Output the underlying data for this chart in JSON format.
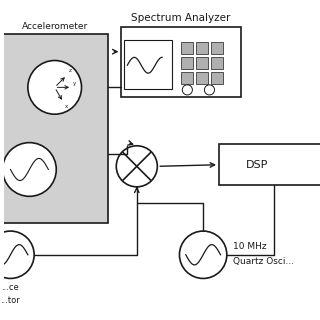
{
  "bg_color": "#ffffff",
  "line_color": "#1a1a1a",
  "gray_fill": "#d0d0d0",
  "accelerometer_label": "Accelerometer",
  "spectrum_analyzer_label": "Spectrum Analyzer",
  "dsp_label": "DSP",
  "ref_osc_label1": "10 MHz",
  "ref_osc_label2": "Quartz Osci...",
  "source_label1": "...ce",
  "source_label2": "...tor"
}
